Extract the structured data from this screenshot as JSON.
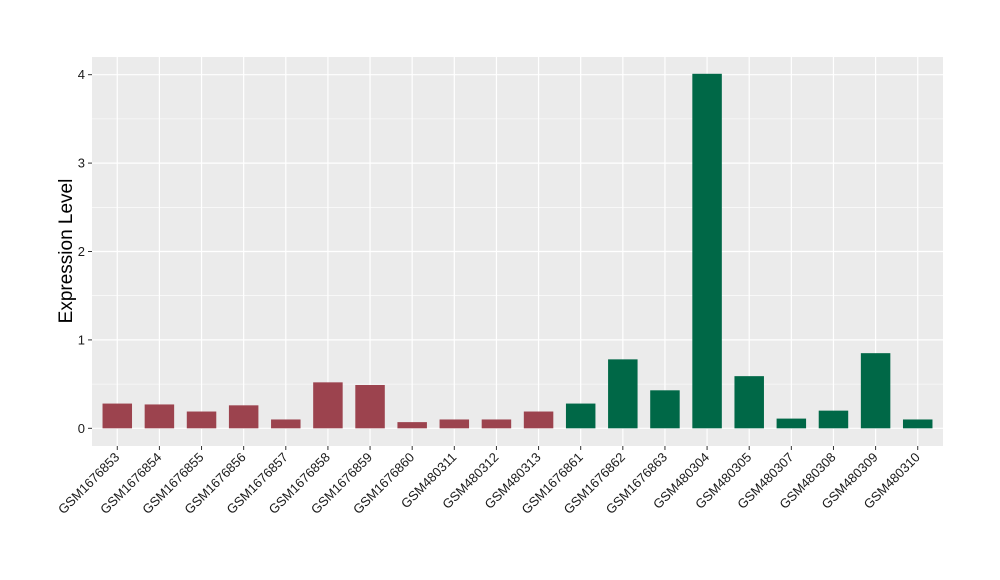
{
  "chart_data": {
    "type": "bar",
    "title": "",
    "xlabel": "",
    "ylabel": "Expression Level",
    "ylim": [
      -0.2,
      4.2
    ],
    "yticks": [
      0,
      1,
      2,
      3,
      4
    ],
    "grid": true,
    "categories": [
      "GSM1676853",
      "GSM1676854",
      "GSM1676855",
      "GSM1676856",
      "GSM1676857",
      "GSM1676858",
      "GSM1676859",
      "GSM1676860",
      "GSM480311",
      "GSM480312",
      "GSM480313",
      "GSM1676861",
      "GSM1676862",
      "GSM1676863",
      "GSM480304",
      "GSM480305",
      "GSM480307",
      "GSM480308",
      "GSM480309",
      "GSM480310"
    ],
    "values": [
      0.28,
      0.27,
      0.19,
      0.26,
      0.1,
      0.52,
      0.49,
      0.07,
      0.1,
      0.1,
      0.19,
      0.28,
      0.78,
      0.43,
      4.01,
      0.59,
      0.11,
      0.2,
      0.85,
      0.1
    ],
    "groups": [
      0,
      0,
      0,
      0,
      0,
      0,
      0,
      0,
      0,
      0,
      0,
      1,
      1,
      1,
      1,
      1,
      1,
      1,
      1,
      1
    ],
    "colors": {
      "group_0": "#9c434e",
      "group_1": "#006847",
      "panel_background": "#ebebeb",
      "grid": "#ffffff"
    }
  }
}
